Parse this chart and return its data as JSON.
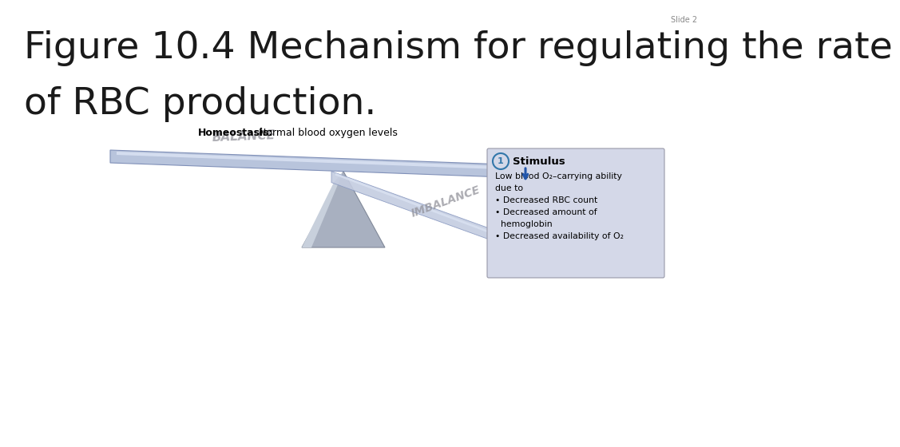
{
  "title_line1": "Figure 10.4 Mechanism for regulating the rate",
  "title_line2": "of RBC production.",
  "slide_label": "Slide 2",
  "homeostasis_bold": "Homeostasis:",
  "homeostasis_normal": " Normal blood oxygen levels",
  "balance_text": "BALANCE",
  "imbalance_text": "IMBALANCE",
  "stimulus_title": "Stimulus",
  "stimulus_number": "1",
  "stim_line1": "Low blood O₂–carrying ability",
  "stim_line2": "due to",
  "stim_line3": "• Decreased RBC count",
  "stim_line4": "• Decreased amount of",
  "stim_line5": "  hemoglobin",
  "stim_line6": "• Decreased availability of O₂",
  "bg_color": "#ffffff",
  "title_color": "#1a1a1a",
  "slide_label_color": "#888888",
  "beam_color": "#b8c4dc",
  "beam_highlight": "#dce4f4",
  "beam_edge": "#8090b8",
  "fulcrum_color": "#a8b0c0",
  "fulcrum_light": "#c8d0dc",
  "fulcrum_dark": "#888898",
  "imb_beam_color": "#c4cce0",
  "imb_beam_edge": "#8898c0",
  "box_bg": "#d4d8e8",
  "box_edge": "#9898a8",
  "circle_color": "#3377aa",
  "arrow_color": "#2255aa",
  "text_dim": "#909098",
  "black": "#000000"
}
